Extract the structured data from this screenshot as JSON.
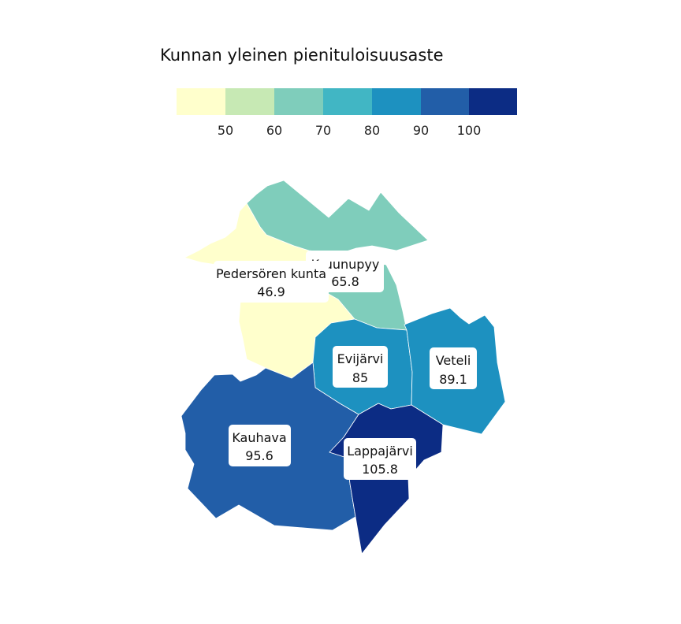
{
  "legend": {
    "title": "Kunnan yleinen pienituloisuusaste",
    "ticks": [
      "50",
      "60",
      "70",
      "80",
      "90",
      "100"
    ],
    "colors": [
      "#ffffcc",
      "#c7e9b4",
      "#7fcdbb",
      "#41b6c4",
      "#1d91c0",
      "#225ea8",
      "#0c2c84"
    ]
  },
  "municipalities": [
    {
      "id": "pedersore",
      "name": "Pedersören kunta",
      "value": "46.9",
      "color": "#ffffcc"
    },
    {
      "id": "kruunupyy",
      "name": "Kruunupyy",
      "value": "65.8",
      "color": "#7fcdbb"
    },
    {
      "id": "evijarvi",
      "name": "Evijärvi",
      "value": "85",
      "color": "#1d91c0"
    },
    {
      "id": "veteli",
      "name": "Veteli",
      "value": "89.1",
      "color": "#1d91c0"
    },
    {
      "id": "kauhava",
      "name": "Kauhava",
      "value": "95.6",
      "color": "#225ea8"
    },
    {
      "id": "lappajarvi",
      "name": "Lappajärvi",
      "value": "105.8",
      "color": "#0c2c84"
    }
  ]
}
